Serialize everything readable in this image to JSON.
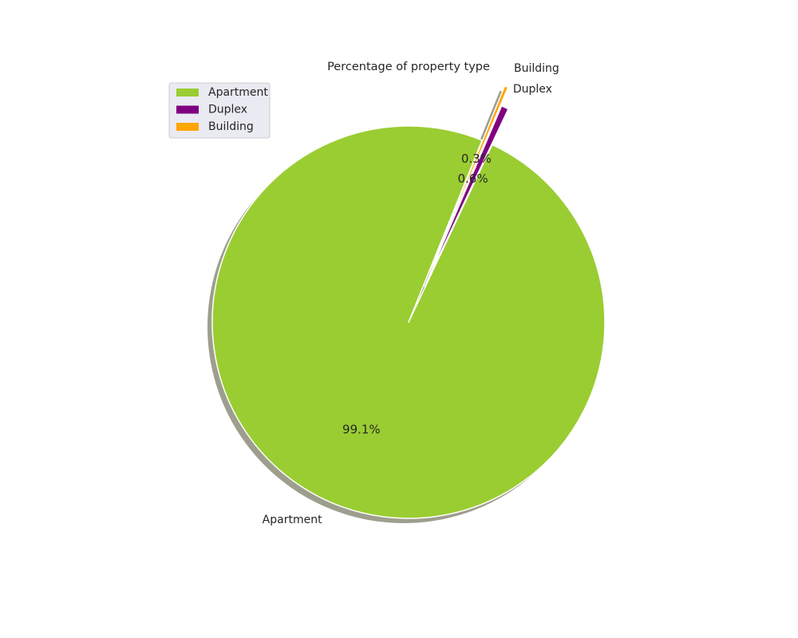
{
  "chart_data": {
    "type": "pie",
    "title": "Percentage  of property type",
    "categories": [
      "Apartment",
      "Duplex",
      "Building"
    ],
    "values": [
      99.1,
      0.6,
      0.3
    ],
    "value_labels": [
      "99.1%",
      "0.6%",
      "0.3%"
    ],
    "colors": [
      "#9acd32",
      "#800080",
      "#ffa500"
    ],
    "explode": [
      0,
      0.2,
      0.3
    ],
    "start_angle_deg": 68,
    "shadow": true,
    "legend": {
      "placement": "top-left",
      "entries": [
        "Apartment",
        "Duplex",
        "Building"
      ]
    }
  }
}
